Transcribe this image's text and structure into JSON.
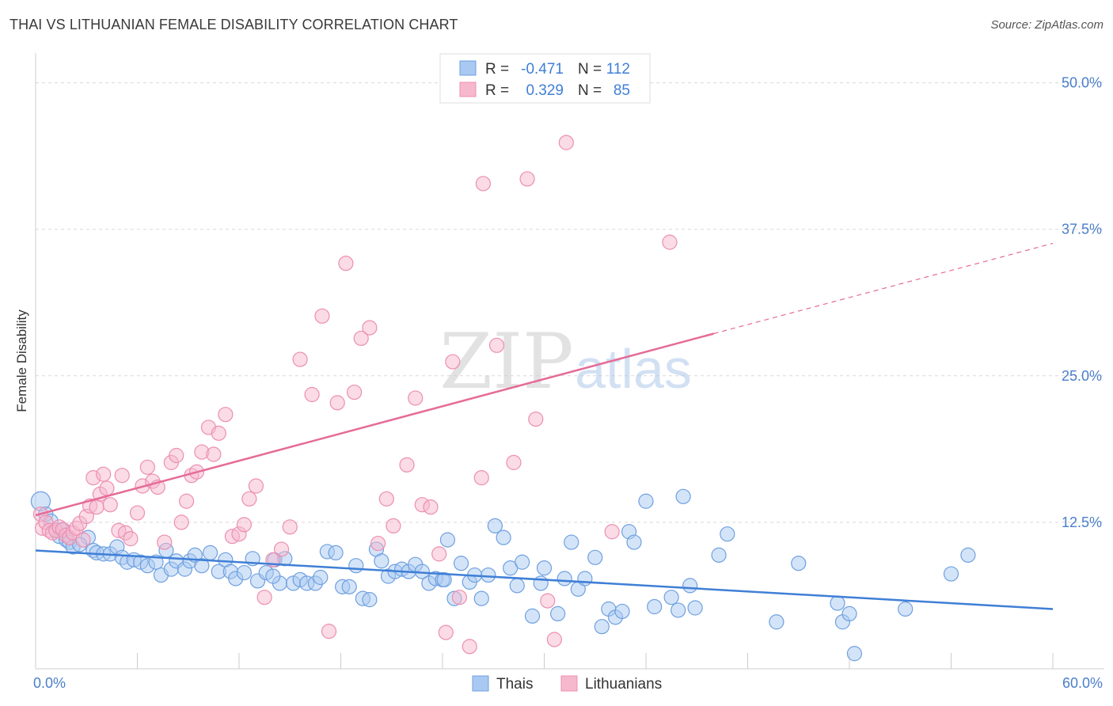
{
  "title": "THAI VS LITHUANIAN FEMALE DISABILITY CORRELATION CHART",
  "source": "Source: ZipAtlas.com",
  "watermark": {
    "zip": "ZIP",
    "atlas": "atlas"
  },
  "colors": {
    "blue": "#3f7fd6",
    "blue_fill": "#a9c9f2",
    "blue_stroke": "#6fa0e0",
    "pink": "#e56b97",
    "pink_fill": "#f6b8cd",
    "pink_stroke": "#ec8fb0",
    "grid": "#d9d9d9",
    "tick_label": "#4a7fc9"
  },
  "legend_box": {
    "rows": [
      {
        "r_label": "R =",
        "r_value": "-0.471",
        "n_label": "N =",
        "n_value": "112",
        "series": "Thais"
      },
      {
        "r_label": "R =",
        "r_value": "0.329",
        "n_label": "N =",
        "n_value": "85",
        "series": "Lithuanians"
      }
    ]
  },
  "bottom_legend": [
    "Thais",
    "Lithuanians"
  ],
  "chart_data": {
    "type": "scatter",
    "ylabel": "Female Disability",
    "xlim": [
      0,
      60
    ],
    "ylim": [
      0,
      52
    ],
    "x_tick_labels": [
      {
        "value": 0,
        "label": "0.0%"
      },
      {
        "value": 60,
        "label": "60.0%"
      }
    ],
    "y_tick_labels": [
      {
        "value": 12.5,
        "label": "12.5%"
      },
      {
        "value": 25.0,
        "label": "25.0%"
      },
      {
        "value": 37.5,
        "label": "37.5%"
      },
      {
        "value": 50.0,
        "label": "50.0%"
      }
    ],
    "grid": "horizontal dashed",
    "series": [
      {
        "name": "Thais",
        "color": "#3f7fd6",
        "trend": {
          "x0": 0,
          "y0": 10.1,
          "x1": 60,
          "y1": 5.1
        },
        "points": [
          [
            0.3,
            14.3
          ],
          [
            0.6,
            13.2
          ],
          [
            0.9,
            12.6
          ],
          [
            1.2,
            11.8
          ],
          [
            1.4,
            11.3
          ],
          [
            1.6,
            11.8
          ],
          [
            1.8,
            11.0
          ],
          [
            2.0,
            10.8
          ],
          [
            2.2,
            10.4
          ],
          [
            3.1,
            11.2
          ],
          [
            2.6,
            10.6
          ],
          [
            3.4,
            10.1
          ],
          [
            3.6,
            9.9
          ],
          [
            4.0,
            9.8
          ],
          [
            4.4,
            9.8
          ],
          [
            4.8,
            10.4
          ],
          [
            5.1,
            9.5
          ],
          [
            5.4,
            9.1
          ],
          [
            5.8,
            9.3
          ],
          [
            6.2,
            9.1
          ],
          [
            6.6,
            8.8
          ],
          [
            7.1,
            9.1
          ],
          [
            7.4,
            8.0
          ],
          [
            7.7,
            10.1
          ],
          [
            8.0,
            8.5
          ],
          [
            8.3,
            9.2
          ],
          [
            8.8,
            8.5
          ],
          [
            9.1,
            9.2
          ],
          [
            9.4,
            9.7
          ],
          [
            9.8,
            8.8
          ],
          [
            10.3,
            9.9
          ],
          [
            10.8,
            8.3
          ],
          [
            11.2,
            9.3
          ],
          [
            11.5,
            8.3
          ],
          [
            11.8,
            7.7
          ],
          [
            12.3,
            8.2
          ],
          [
            12.8,
            9.4
          ],
          [
            13.1,
            7.5
          ],
          [
            13.6,
            8.2
          ],
          [
            14.1,
            9.3
          ],
          [
            14.4,
            7.3
          ],
          [
            14.7,
            9.4
          ],
          [
            15.2,
            7.3
          ],
          [
            15.6,
            7.6
          ],
          [
            16.0,
            7.3
          ],
          [
            16.5,
            7.3
          ],
          [
            16.8,
            7.8
          ],
          [
            17.2,
            10.0
          ],
          [
            17.7,
            9.9
          ],
          [
            18.1,
            7.0
          ],
          [
            18.5,
            7.0
          ],
          [
            18.9,
            8.8
          ],
          [
            19.3,
            6.0
          ],
          [
            19.7,
            5.9
          ],
          [
            20.1,
            10.2
          ],
          [
            20.4,
            9.2
          ],
          [
            20.8,
            7.9
          ],
          [
            21.2,
            8.3
          ],
          [
            21.6,
            8.5
          ],
          [
            22.0,
            8.3
          ],
          [
            22.4,
            8.9
          ],
          [
            22.8,
            8.3
          ],
          [
            23.2,
            7.3
          ],
          [
            23.6,
            7.7
          ],
          [
            24.0,
            7.6
          ],
          [
            24.3,
            11.0
          ],
          [
            24.7,
            6.0
          ],
          [
            25.1,
            9.0
          ],
          [
            25.6,
            7.4
          ],
          [
            25.9,
            8.0
          ],
          [
            26.3,
            6.0
          ],
          [
            26.7,
            8.0
          ],
          [
            27.1,
            12.2
          ],
          [
            27.6,
            11.2
          ],
          [
            28.0,
            8.6
          ],
          [
            28.4,
            7.1
          ],
          [
            28.7,
            9.1
          ],
          [
            29.3,
            4.5
          ],
          [
            29.8,
            7.3
          ],
          [
            30.0,
            8.6
          ],
          [
            30.8,
            4.7
          ],
          [
            31.2,
            7.7
          ],
          [
            31.6,
            10.8
          ],
          [
            32.0,
            6.8
          ],
          [
            32.4,
            7.7
          ],
          [
            33.0,
            9.5
          ],
          [
            33.4,
            3.6
          ],
          [
            33.8,
            5.1
          ],
          [
            34.2,
            4.4
          ],
          [
            34.6,
            4.9
          ],
          [
            35.0,
            11.7
          ],
          [
            35.3,
            10.8
          ],
          [
            36.0,
            14.3
          ],
          [
            36.5,
            5.3
          ],
          [
            37.5,
            6.1
          ],
          [
            37.9,
            5.0
          ],
          [
            38.2,
            14.7
          ],
          [
            38.6,
            7.1
          ],
          [
            38.9,
            5.2
          ],
          [
            40.3,
            9.7
          ],
          [
            40.8,
            11.5
          ],
          [
            43.7,
            4.0
          ],
          [
            45.0,
            9.0
          ],
          [
            47.3,
            5.6
          ],
          [
            47.6,
            4.0
          ],
          [
            48.0,
            4.7
          ],
          [
            48.3,
            1.3
          ],
          [
            51.3,
            5.1
          ],
          [
            54.0,
            8.1
          ],
          [
            55.0,
            9.7
          ],
          [
            24.1,
            7.6
          ],
          [
            14.0,
            7.9
          ]
        ]
      },
      {
        "name": "Lithuanians",
        "color": "#e56b97",
        "trend": {
          "x0": 0,
          "y0": 13.1,
          "x1": 40,
          "y1": 28.6
        },
        "trend_dashed": {
          "x0": 40,
          "y0": 28.6,
          "x1": 60,
          "y1": 36.3
        },
        "points": [
          [
            0.3,
            13.2
          ],
          [
            0.4,
            12.0
          ],
          [
            0.6,
            12.5
          ],
          [
            0.8,
            11.8
          ],
          [
            1.0,
            11.6
          ],
          [
            1.2,
            11.8
          ],
          [
            1.4,
            12.1
          ],
          [
            1.6,
            11.9
          ],
          [
            1.8,
            11.4
          ],
          [
            2.0,
            11.2
          ],
          [
            2.2,
            11.6
          ],
          [
            2.4,
            12.0
          ],
          [
            2.6,
            12.4
          ],
          [
            2.8,
            11.0
          ],
          [
            3.0,
            13.0
          ],
          [
            3.2,
            13.9
          ],
          [
            3.4,
            16.3
          ],
          [
            3.6,
            13.8
          ],
          [
            3.8,
            14.9
          ],
          [
            4.0,
            16.6
          ],
          [
            4.2,
            15.4
          ],
          [
            4.4,
            14.0
          ],
          [
            5.1,
            16.5
          ],
          [
            4.9,
            11.8
          ],
          [
            5.3,
            11.6
          ],
          [
            5.6,
            11.1
          ],
          [
            6.0,
            13.3
          ],
          [
            6.3,
            15.6
          ],
          [
            6.6,
            17.2
          ],
          [
            6.9,
            16.0
          ],
          [
            7.2,
            15.5
          ],
          [
            7.6,
            10.8
          ],
          [
            8.0,
            17.6
          ],
          [
            8.3,
            18.2
          ],
          [
            8.6,
            12.5
          ],
          [
            8.9,
            14.3
          ],
          [
            9.2,
            16.5
          ],
          [
            9.5,
            16.8
          ],
          [
            9.8,
            18.5
          ],
          [
            10.2,
            20.6
          ],
          [
            10.5,
            18.3
          ],
          [
            10.8,
            20.1
          ],
          [
            11.2,
            21.7
          ],
          [
            11.6,
            11.3
          ],
          [
            12.0,
            11.5
          ],
          [
            12.3,
            12.3
          ],
          [
            12.6,
            14.5
          ],
          [
            13.0,
            15.6
          ],
          [
            13.5,
            6.1
          ],
          [
            14.0,
            9.3
          ],
          [
            14.5,
            10.2
          ],
          [
            15.0,
            12.1
          ],
          [
            15.6,
            26.4
          ],
          [
            16.3,
            23.4
          ],
          [
            16.9,
            30.1
          ],
          [
            17.3,
            3.2
          ],
          [
            17.8,
            22.7
          ],
          [
            18.3,
            34.6
          ],
          [
            18.8,
            23.6
          ],
          [
            19.2,
            28.2
          ],
          [
            19.7,
            29.1
          ],
          [
            20.2,
            10.7
          ],
          [
            20.7,
            14.5
          ],
          [
            21.1,
            12.2
          ],
          [
            21.9,
            17.4
          ],
          [
            22.4,
            23.1
          ],
          [
            22.8,
            14.0
          ],
          [
            23.3,
            13.8
          ],
          [
            23.8,
            9.8
          ],
          [
            24.2,
            3.1
          ],
          [
            24.6,
            26.2
          ],
          [
            25.0,
            6.1
          ],
          [
            25.6,
            1.9
          ],
          [
            26.0,
            49.2
          ],
          [
            26.4,
            41.4
          ],
          [
            27.2,
            27.6
          ],
          [
            28.2,
            17.6
          ],
          [
            29.0,
            41.8
          ],
          [
            29.5,
            21.3
          ],
          [
            30.2,
            5.8
          ],
          [
            30.6,
            2.5
          ],
          [
            31.3,
            44.9
          ],
          [
            34.0,
            11.7
          ],
          [
            26.3,
            16.3
          ],
          [
            37.4,
            36.4
          ]
        ]
      }
    ]
  }
}
